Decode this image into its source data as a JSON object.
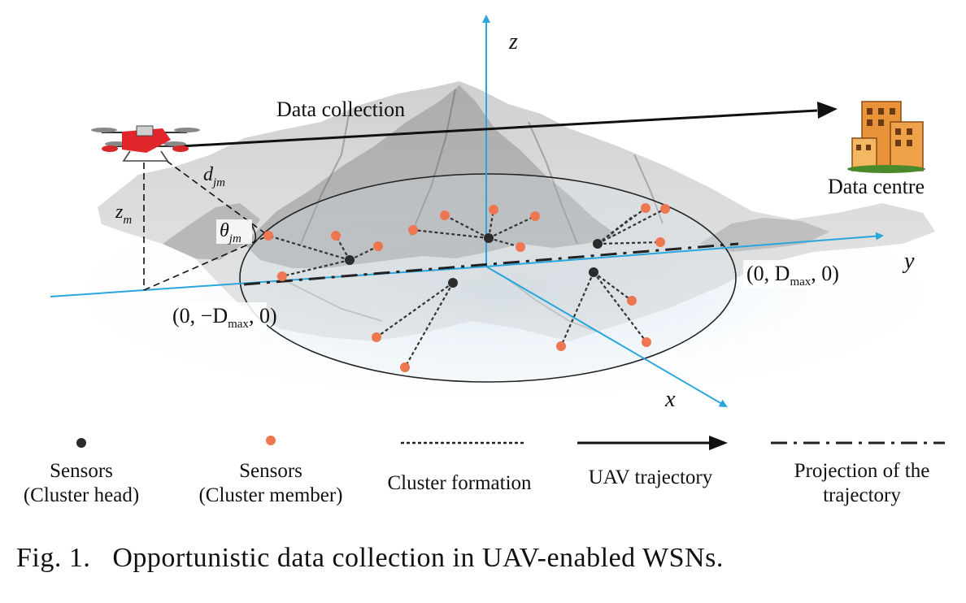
{
  "labels": {
    "data_collection": "Data collection",
    "data_centre": "Data centre",
    "axis_x": "x",
    "axis_y": "y",
    "axis_z": "z",
    "d_jm": "d",
    "d_jm_sub": "jm",
    "theta_jm": "θ",
    "theta_jm_sub": "jm",
    "z_m": "z",
    "z_m_sub": "m",
    "coord_neg": "(0, −D",
    "coord_pos": "(0, D",
    "coord_sub": "max",
    "coord_end": ", 0)"
  },
  "legend": {
    "cluster_head": [
      "Sensors",
      "(Cluster head)"
    ],
    "cluster_member": [
      "Sensors",
      "(Cluster member)"
    ],
    "cluster_formation": "Cluster formation",
    "uav_trajectory": "UAV trajectory",
    "projection": [
      "Projection of the",
      "trajectory"
    ]
  },
  "caption": "Fig. 1.   Opportunistic data collection in UAV-enabled WSNs.",
  "colors": {
    "axis": "#29a6dc",
    "cluster_head": "#2b2b2b",
    "cluster_member": "#ee7752",
    "mountain": "#8e8e8e",
    "line": "#111111"
  }
}
